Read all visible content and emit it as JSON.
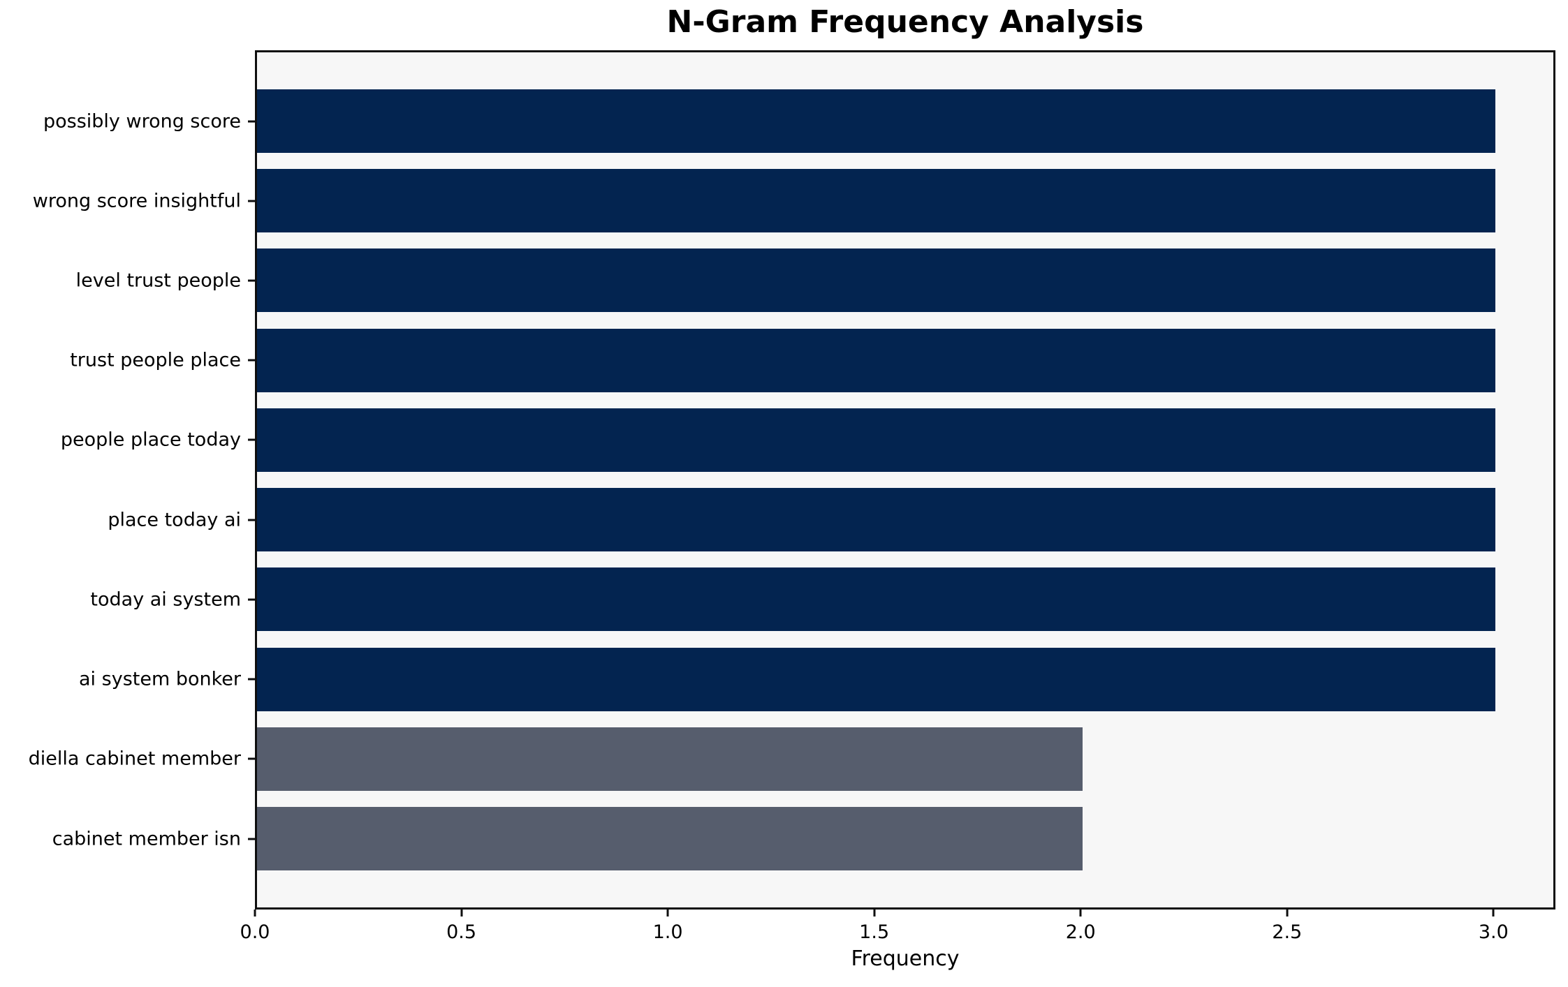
{
  "colors": {
    "bar_primary": "#032450",
    "bar_secondary": "#565d6d",
    "plot_background": "#f7f7f7",
    "figure_background": "#ffffff",
    "spine": "#0f0f0f",
    "text": "#000000"
  },
  "chart_data": {
    "type": "bar",
    "orientation": "horizontal",
    "title": "N-Gram Frequency Analysis",
    "xlabel": "Frequency",
    "ylabel": "",
    "categories": [
      "possibly wrong score",
      "wrong score insightful",
      "level trust people",
      "trust people place",
      "people place today",
      "place today ai",
      "today ai system",
      "ai system bonker",
      "diella cabinet member",
      "cabinet member isn"
    ],
    "values": [
      3,
      3,
      3,
      3,
      3,
      3,
      3,
      3,
      2,
      2
    ],
    "bar_colors": [
      "#032450",
      "#032450",
      "#032450",
      "#032450",
      "#032450",
      "#032450",
      "#032450",
      "#032450",
      "#565d6d",
      "#565d6d"
    ],
    "xlim": [
      0,
      3.15
    ],
    "xticks": [
      0.0,
      0.5,
      1.0,
      1.5,
      2.0,
      2.5,
      3.0
    ],
    "xtick_labels": [
      "0.0",
      "0.5",
      "1.0",
      "1.5",
      "2.0",
      "2.5",
      "3.0"
    ],
    "grid": false,
    "legend": null
  }
}
